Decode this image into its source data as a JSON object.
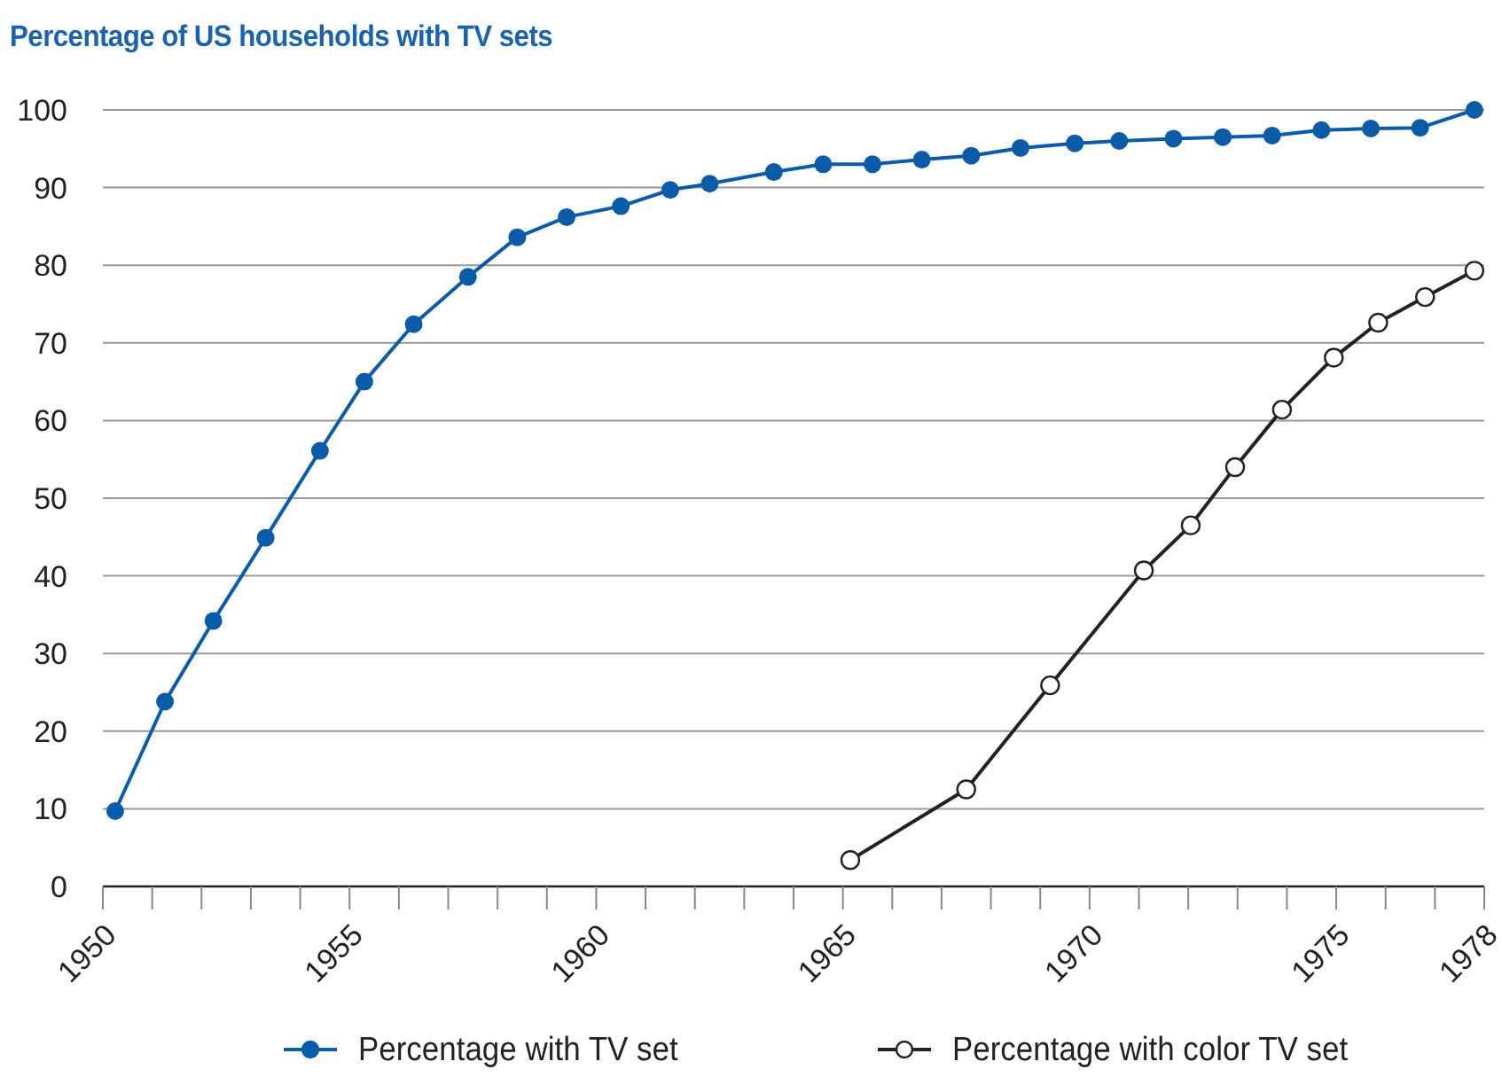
{
  "chart_data": {
    "type": "line",
    "title": "Percentage of US households with TV sets",
    "xlim": [
      1950,
      1978
    ],
    "xticks": [
      1950,
      {
        "value": 1951,
        "label": null
      },
      {
        "value": 1952,
        "label": null
      },
      {
        "value": 1953,
        "label": null
      },
      {
        "value": 1954,
        "label": null
      },
      1955,
      {
        "value": 1956,
        "label": null
      },
      {
        "value": 1957,
        "label": null
      },
      {
        "value": 1958,
        "label": null
      },
      {
        "value": 1959,
        "label": null
      },
      1960,
      {
        "value": 1961,
        "label": null
      },
      {
        "value": 1962,
        "label": null
      },
      {
        "value": 1963,
        "label": null
      },
      {
        "value": 1964,
        "label": null
      },
      1965,
      {
        "value": 1966,
        "label": null
      },
      {
        "value": 1967,
        "label": null
      },
      {
        "value": 1968,
        "label": null
      },
      {
        "value": 1969,
        "label": null
      },
      1970,
      {
        "value": 1971,
        "label": null
      },
      {
        "value": 1972,
        "label": null
      },
      {
        "value": 1973,
        "label": null
      },
      {
        "value": 1974,
        "label": null
      },
      1975,
      {
        "value": 1976,
        "label": null
      },
      {
        "value": 1977,
        "label": null
      },
      1978
    ],
    "ylim": [
      0,
      100
    ],
    "yticks": [
      0,
      10,
      20,
      30,
      40,
      50,
      60,
      70,
      80,
      90,
      100
    ],
    "grid": "y",
    "legend": "bottom",
    "line_style": "solid",
    "series": [
      {
        "name": "Percentage with TV set",
        "color": "#0a5ca8",
        "marker": "circle",
        "x": [
          1950.25,
          1951.26,
          1952.24,
          1953.3,
          1954.4,
          1955.3,
          1956.3,
          1957.4,
          1958.4,
          1959.4,
          1960.5,
          1961.5,
          1962.3,
          1963.6,
          1964.6,
          1965.6,
          1966.6,
          1967.6,
          1968.6,
          1969.7,
          1970.6,
          1971.7,
          1972.7,
          1973.7,
          1974.7,
          1975.7,
          1976.7,
          1977.8
        ],
        "values": [
          9.7,
          23.8,
          34.2,
          44.9,
          56.1,
          65.0,
          72.4,
          78.5,
          83.6,
          86.2,
          87.6,
          89.7,
          90.5,
          92.0,
          93.0,
          93.0,
          93.6,
          94.1,
          95.1,
          95.7,
          96.0,
          96.3,
          96.5,
          96.7,
          97.4,
          97.6,
          97.7,
          100
        ]
      },
      {
        "name": "Percentage with color TV set",
        "color": "#222222",
        "marker": "open-circle",
        "x": [
          1965.15,
          1967.5,
          1969.2,
          1971.1,
          1972.05,
          1972.95,
          1973.9,
          1974.95,
          1975.85,
          1976.8,
          1977.8
        ],
        "values": [
          3.4,
          12.5,
          25.9,
          40.7,
          46.5,
          54.0,
          61.4,
          68.1,
          72.6,
          75.9,
          79.3
        ]
      }
    ]
  }
}
